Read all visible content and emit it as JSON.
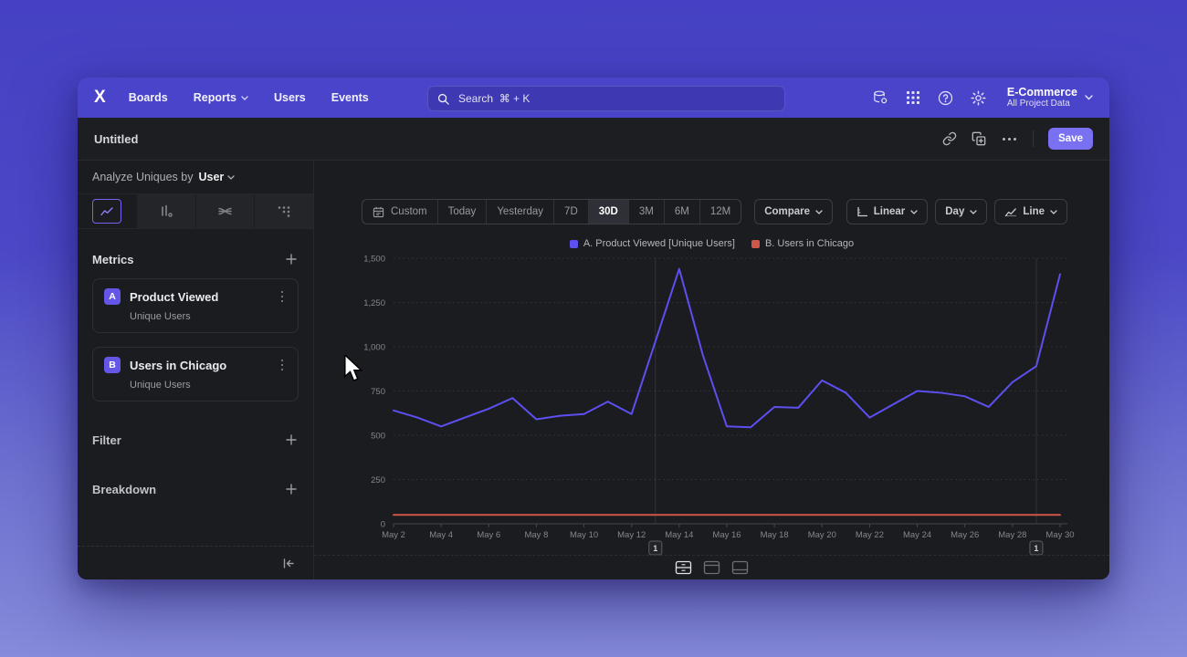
{
  "nav": {
    "logo_glyph": "X",
    "items": [
      "Boards",
      "Reports",
      "Users",
      "Events"
    ],
    "search_placeholder": "Search  ⌘ + K",
    "project": {
      "name": "E-Commerce",
      "subtitle": "All Project Data"
    }
  },
  "header": {
    "title": "Untitled",
    "save_label": "Save"
  },
  "sidebar": {
    "analyze_prefix": "Analyze Uniques by",
    "analyze_value": "User",
    "metrics_title": "Metrics",
    "metrics": [
      {
        "badge": "A",
        "name": "Product Viewed",
        "subtitle": "Unique Users"
      },
      {
        "badge": "B",
        "name": "Users in Chicago",
        "subtitle": "Unique Users"
      }
    ],
    "filter_title": "Filter",
    "breakdown_title": "Breakdown"
  },
  "toolbar": {
    "ranges": [
      "Custom",
      "Today",
      "Yesterday",
      "7D",
      "30D",
      "3M",
      "6M",
      "12M"
    ],
    "selected_range": "30D",
    "compare_label": "Compare",
    "scale_label": "Linear",
    "interval_label": "Day",
    "chart_type_label": "Line"
  },
  "chart_data": {
    "type": "line",
    "x": [
      "May 2",
      "May 3",
      "May 4",
      "May 5",
      "May 6",
      "May 7",
      "May 8",
      "May 9",
      "May 10",
      "May 11",
      "May 12",
      "May 13",
      "May 14",
      "May 15",
      "May 16",
      "May 17",
      "May 18",
      "May 19",
      "May 20",
      "May 21",
      "May 22",
      "May 23",
      "May 24",
      "May 25",
      "May 26",
      "May 27",
      "May 28",
      "May 29",
      "May 30"
    ],
    "x_tick_step": 2,
    "ylim": [
      0,
      1500
    ],
    "yticks": [
      0,
      250,
      500,
      750,
      1000,
      1250,
      1500
    ],
    "ytick_labels": [
      "0",
      "250",
      "500",
      "750",
      "1,000",
      "1,250",
      "1,500"
    ],
    "grid": "horizontal-dashed",
    "legend_position": "top-center",
    "series": [
      {
        "name": "A. Product Viewed [Unique Users]",
        "color": "#5d4ff0",
        "values": [
          640,
          600,
          550,
          600,
          650,
          710,
          590,
          610,
          620,
          690,
          620,
          1030,
          1440,
          950,
          550,
          545,
          660,
          655,
          810,
          740,
          600,
          675,
          750,
          740,
          720,
          660,
          800,
          890,
          1410
        ]
      },
      {
        "name": "B. Users in Chicago",
        "color": "#d0564a",
        "values": [
          50,
          50,
          50,
          50,
          50,
          50,
          50,
          50,
          50,
          50,
          50,
          50,
          50,
          50,
          50,
          50,
          50,
          50,
          50,
          50,
          50,
          50,
          50,
          50,
          50,
          50,
          50,
          50,
          50
        ]
      }
    ],
    "annotations": [
      {
        "label": "1",
        "x": "May 13"
      },
      {
        "label": "1",
        "x": "May 29"
      }
    ]
  }
}
